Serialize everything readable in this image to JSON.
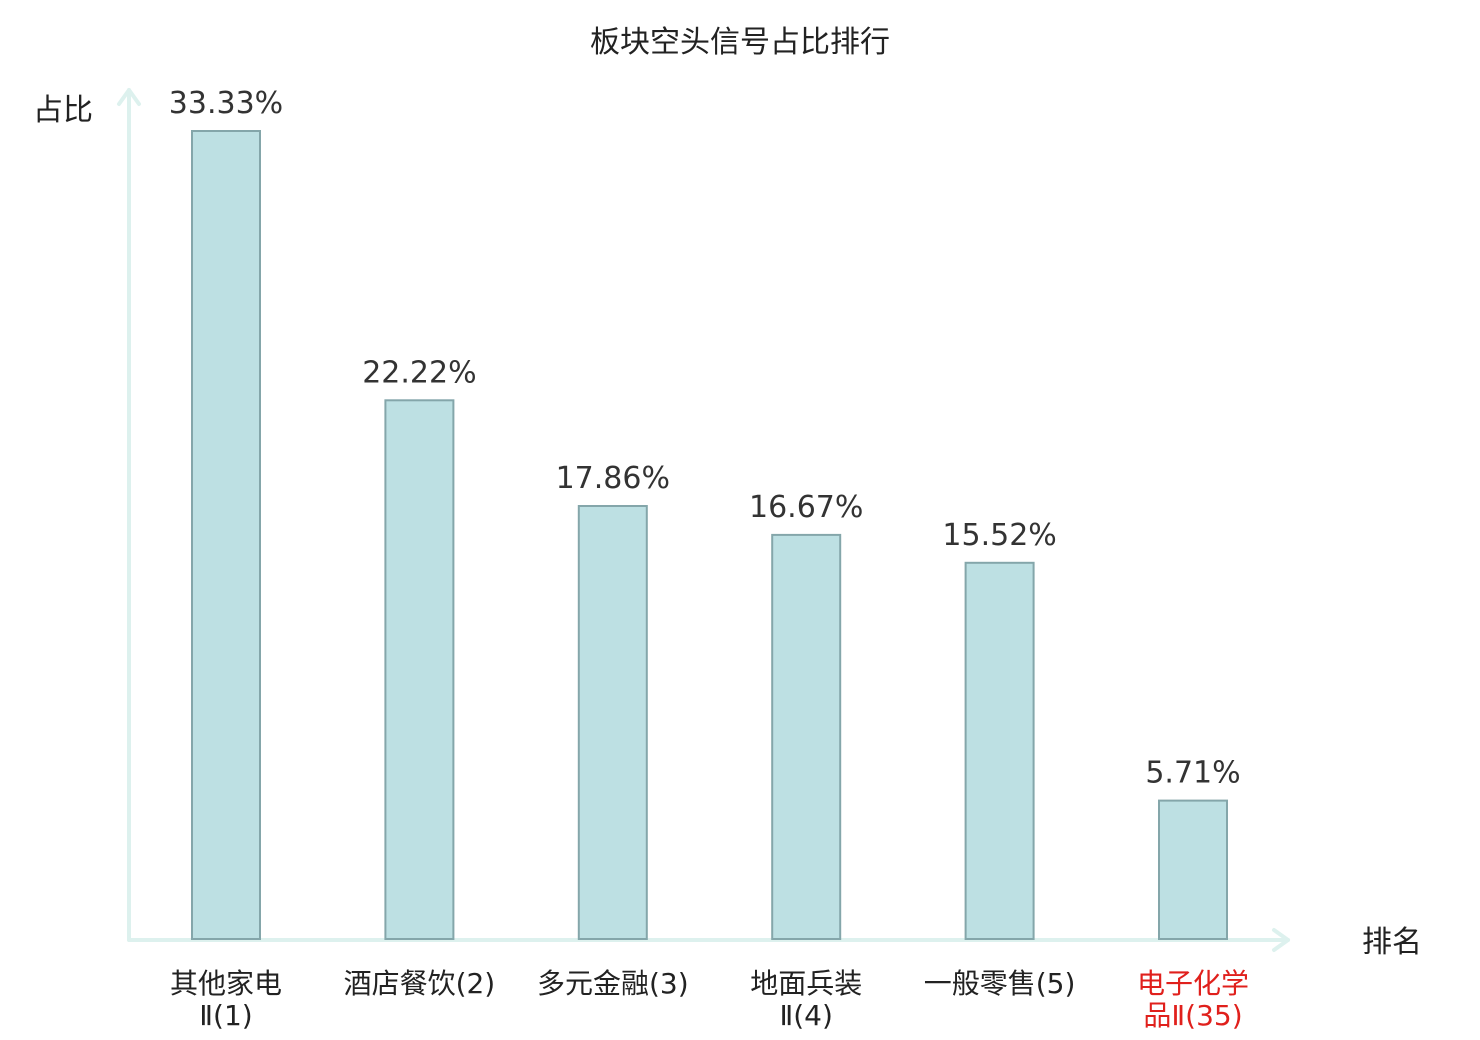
{
  "chart_data": {
    "type": "bar",
    "title": "板块空头信号占比排行",
    "xlabel": "排名",
    "ylabel": "占比",
    "ylim": [
      0,
      35
    ],
    "grid": false,
    "legend": "none",
    "categories": [
      {
        "lines": [
          "其他家电",
          "Ⅱ(1)"
        ],
        "highlight": false
      },
      {
        "lines": [
          "酒店餐饮(2)"
        ],
        "highlight": false
      },
      {
        "lines": [
          "多元金融(3)"
        ],
        "highlight": false
      },
      {
        "lines": [
          "地面兵装",
          "Ⅱ(4)"
        ],
        "highlight": false
      },
      {
        "lines": [
          "一般零售(5)"
        ],
        "highlight": false
      },
      {
        "lines": [
          "电子化学",
          "品Ⅱ(35)"
        ],
        "highlight": true
      }
    ],
    "values": [
      33.33,
      22.22,
      17.86,
      16.67,
      15.52,
      5.71
    ],
    "value_labels": [
      "33.33%",
      "22.22%",
      "17.86%",
      "16.67%",
      "15.52%",
      "5.71%"
    ],
    "colors": {
      "bar_fill": "#bde0e3",
      "bar_stroke": "#84a6aa",
      "axis": "#ddf1ee",
      "label": "#222222",
      "highlight": "#e0201c"
    }
  }
}
